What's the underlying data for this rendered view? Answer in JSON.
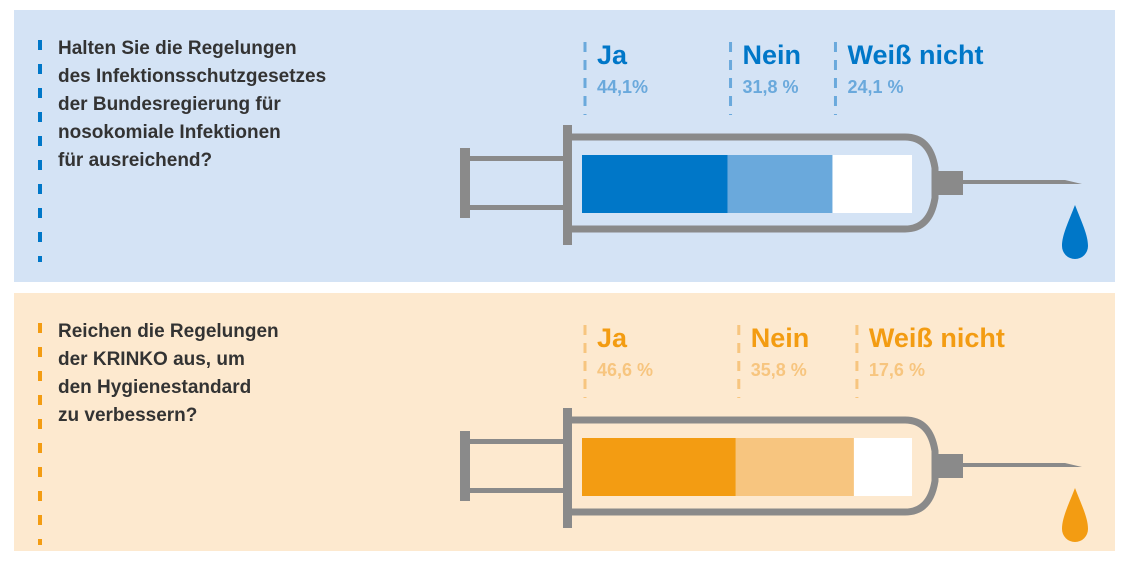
{
  "chart_data": [
    {
      "type": "syringe-bar",
      "title": [
        "Halten Sie die Regelungen",
        "des Infektionsschutzgesetzes",
        "der Bundesregierung für",
        "nosokomiale Infektionen",
        "für ausreichend?"
      ],
      "categories": [
        "Ja",
        "Nein",
        "Weiß nicht"
      ],
      "values": [
        44.1,
        31.8,
        24.1
      ],
      "value_labels": [
        "44,1%",
        "31,8 %",
        "24,1 %"
      ],
      "colors": [
        "#0077c8",
        "#6aa9dc",
        "#ffffff"
      ]
    },
    {
      "type": "syringe-bar",
      "title": [
        "Reichen die Regelungen",
        "der KRINKO aus, um",
        "den Hygienestandard",
        "zu verbessern?"
      ],
      "categories": [
        "Ja",
        "Nein",
        "Weiß nicht"
      ],
      "values": [
        46.6,
        35.8,
        17.6
      ],
      "value_labels": [
        "46,6 %",
        "35,8 %",
        "17,6 %"
      ],
      "colors": [
        "#f39c12",
        "#f7c57f",
        "#ffffff"
      ]
    }
  ]
}
